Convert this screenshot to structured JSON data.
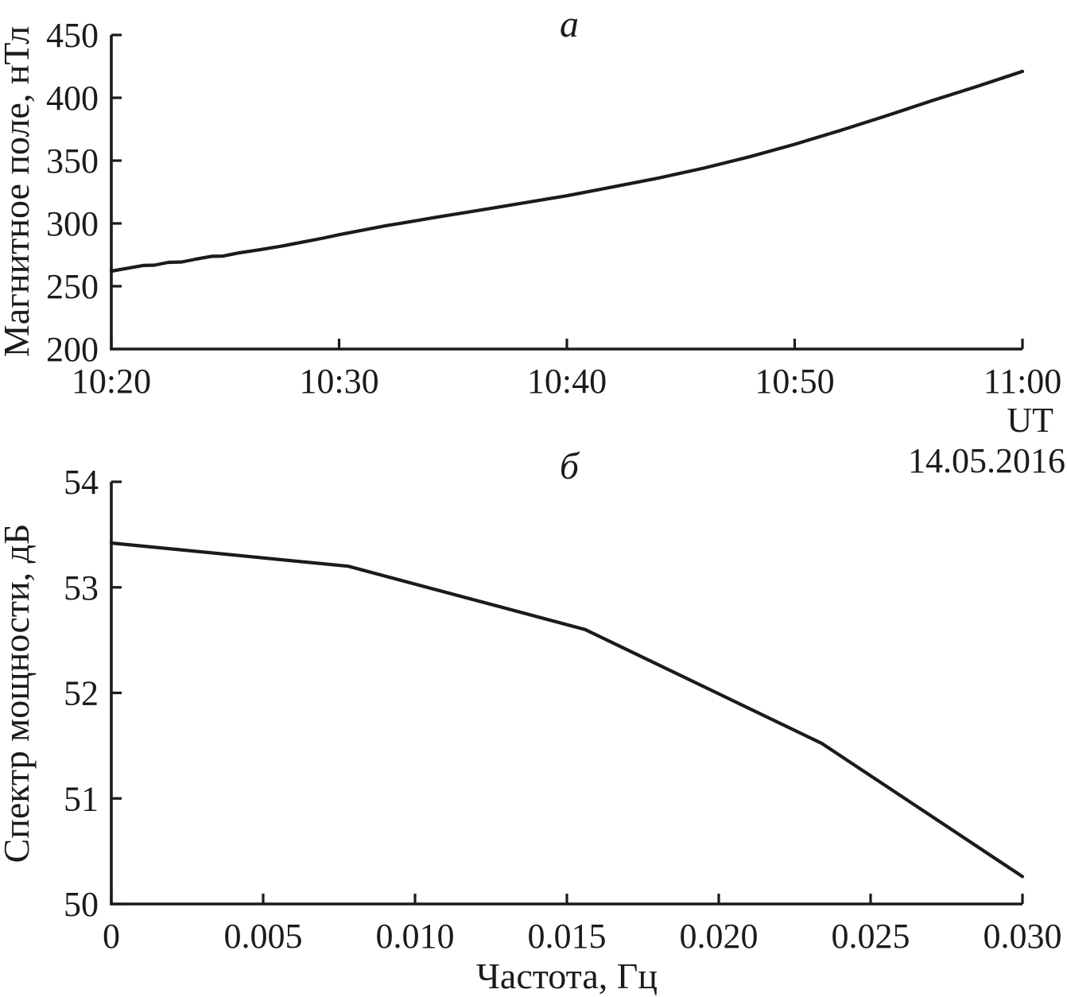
{
  "figure": {
    "background": "#ffffff",
    "line_color": "#1b1b1b"
  },
  "chart_data": [
    {
      "type": "line",
      "panel": "a",
      "title": "a",
      "ylabel": "Магнитное поле, нТл",
      "xlabel": "UT",
      "x_annotation": "14.05.2016",
      "x_tick_labels": [
        "10:20",
        "10:30",
        "10:40",
        "10:50",
        "11:00"
      ],
      "x_tick_minutes": [
        0,
        10,
        20,
        30,
        40
      ],
      "xlim_minutes": [
        0,
        40
      ],
      "y_ticks": [
        200,
        250,
        300,
        350,
        400,
        450
      ],
      "ylim": [
        200,
        450
      ],
      "grid": false,
      "legend": "none",
      "series": [
        {
          "name": "magnetic-field",
          "x_minutes": [
            0,
            0.7,
            1.4,
            1.9,
            2.5,
            3.1,
            3.7,
            4.4,
            4.9,
            5.6,
            6.5,
            7.5,
            8.5,
            9.3,
            10,
            11,
            12,
            13,
            14.3,
            16,
            18,
            20,
            22,
            24,
            26,
            28,
            30,
            32,
            34,
            36,
            38,
            40
          ],
          "y": [
            262,
            264.3,
            266.5,
            266.8,
            269,
            269.3,
            271.5,
            273.8,
            274,
            276.5,
            279,
            282,
            285.5,
            288.3,
            291,
            294.5,
            298,
            301,
            305,
            310,
            316,
            322,
            329,
            336,
            344,
            353,
            363,
            374,
            385.5,
            397.5,
            409,
            421
          ]
        }
      ]
    },
    {
      "type": "line",
      "panel": "б",
      "title": "б",
      "ylabel": "Спектр мощности, дБ",
      "xlabel": "Частота, Гц",
      "x_ticks": [
        0,
        0.005,
        0.01,
        0.015,
        0.02,
        0.025,
        0.03
      ],
      "x_tick_labels": [
        "0",
        "0.005",
        "0.010",
        "0.015",
        "0.020",
        "0.025",
        "0.030"
      ],
      "xlim": [
        0,
        0.03
      ],
      "y_ticks": [
        50,
        51,
        52,
        53,
        54
      ],
      "ylim": [
        50,
        54
      ],
      "grid": false,
      "legend": "none",
      "series": [
        {
          "name": "power-spectrum",
          "x": [
            0,
            0.0078,
            0.0156,
            0.0234,
            0.03
          ],
          "y": [
            53.42,
            53.2,
            52.6,
            51.52,
            50.26
          ]
        }
      ]
    }
  ]
}
